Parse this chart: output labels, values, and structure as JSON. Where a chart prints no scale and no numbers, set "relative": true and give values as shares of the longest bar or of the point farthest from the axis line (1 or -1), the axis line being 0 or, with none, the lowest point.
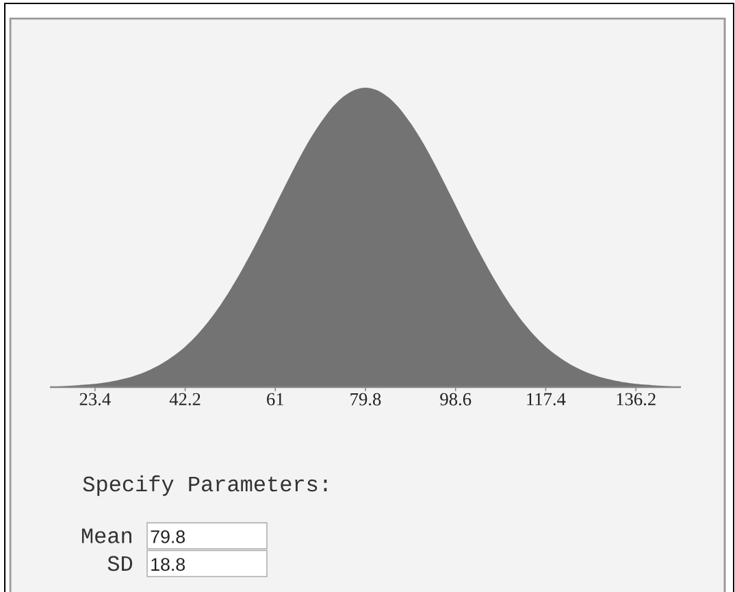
{
  "chart_data": {
    "type": "area",
    "relative": true,
    "x": [
      14,
      16.35,
      18.7,
      21.05,
      23.4,
      25.75,
      28.1,
      30.45,
      32.8,
      35.15,
      37.5,
      39.85,
      42.2,
      44.55,
      46.9,
      49.25,
      51.6,
      53.95,
      56.3,
      58.65,
      61,
      63.35,
      65.7,
      68.05,
      70.4,
      72.75,
      75.1,
      77.45,
      79.8,
      82.15,
      84.5,
      86.85,
      89.2,
      91.55,
      93.9,
      96.25,
      98.6,
      100.95,
      103.3,
      105.65,
      108,
      110.35,
      112.7,
      115.05,
      117.4,
      119.75,
      122.1,
      124.45,
      126.8,
      129.15,
      131.5,
      133.85,
      136.2,
      138.55,
      140.9,
      143.25,
      145.6
    ],
    "values": [
      0.002,
      0.003,
      0.005,
      0.008,
      0.011,
      0.016,
      0.023,
      0.032,
      0.044,
      0.06,
      0.08,
      0.105,
      0.135,
      0.172,
      0.216,
      0.267,
      0.325,
      0.389,
      0.458,
      0.531,
      0.607,
      0.682,
      0.755,
      0.823,
      0.882,
      0.932,
      0.969,
      0.992,
      1,
      0.992,
      0.969,
      0.932,
      0.882,
      0.823,
      0.755,
      0.682,
      0.607,
      0.531,
      0.458,
      0.389,
      0.325,
      0.267,
      0.216,
      0.172,
      0.135,
      0.105,
      0.08,
      0.06,
      0.044,
      0.032,
      0.023,
      0.016,
      0.011,
      0.008,
      0.005,
      0.003,
      0.002
    ],
    "color": "#737373",
    "xlim": [
      14,
      145.6
    ],
    "xticks": [
      23.4,
      42.2,
      61,
      79.8,
      98.6,
      117.4,
      136.2
    ],
    "annotations": [
      "Specify Parameters:",
      "Mean",
      "79.8",
      "SD",
      "18.8"
    ]
  }
}
